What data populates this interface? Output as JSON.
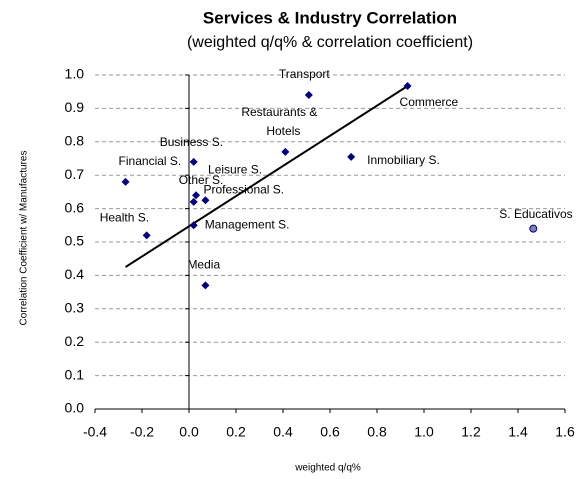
{
  "chart_data": {
    "type": "scatter",
    "title": "Services & Industry Correlation",
    "subtitle": "(weighted q/q% & correlation coefficient)",
    "x_label": "weighted q/q%",
    "y_label": "Correlation Coefficient w/ Manufactures",
    "color": "#000080",
    "grid": true,
    "xlim": [
      -0.4,
      1.6
    ],
    "ylim": [
      0,
      1
    ],
    "xticks": [
      -0.4,
      -0.2,
      {
        "value": 0,
        "label": "0.0"
      },
      0.2,
      0.4,
      0.6,
      0.8,
      {
        "value": 1,
        "label": "1.0"
      },
      1.2,
      1.4,
      1.6
    ],
    "yticks": [
      {
        "value": 0,
        "label": "0.0"
      },
      0.1,
      0.2,
      0.3,
      0.4,
      0.5,
      0.6,
      0.7,
      0.8,
      0.9,
      {
        "value": 1,
        "label": "1.0"
      }
    ],
    "points": [
      {
        "name": "Financial S.",
        "x": -0.27,
        "y": 0.68
      },
      {
        "name": "Health S.",
        "x": -0.18,
        "y": 0.52
      },
      {
        "name": "Business S.",
        "x": 0.02,
        "y": 0.74
      },
      {
        "name": "Leisure S.",
        "x": 0.03,
        "y": 0.64
      },
      {
        "name": "Other S.",
        "x": 0.02,
        "y": 0.62
      },
      {
        "name": "Professional S.",
        "x": 0.07,
        "y": 0.625
      },
      {
        "name": "Management S.",
        "x": 0.02,
        "y": 0.55
      },
      {
        "name": "Media",
        "x": 0.07,
        "y": 0.37
      },
      {
        "name": [
          "Restaurants &",
          "Hotels"
        ],
        "x": 0.41,
        "y": 0.77
      },
      {
        "name": "Transport",
        "x": 0.51,
        "y": 0.94
      },
      {
        "name": "Inmobiliary S.",
        "x": 0.69,
        "y": 0.755
      },
      {
        "name": "Commerce",
        "x": 0.93,
        "y": 0.967
      },
      {
        "name": "S. Educativos",
        "x": 1.465,
        "y": 0.54,
        "marker": "circle",
        "color": "#7f7fb2"
      }
    ],
    "trendline": {
      "x": [
        -0.27,
        0.93
      ],
      "y": [
        0.425,
        0.967
      ],
      "color": "#000000"
    }
  }
}
